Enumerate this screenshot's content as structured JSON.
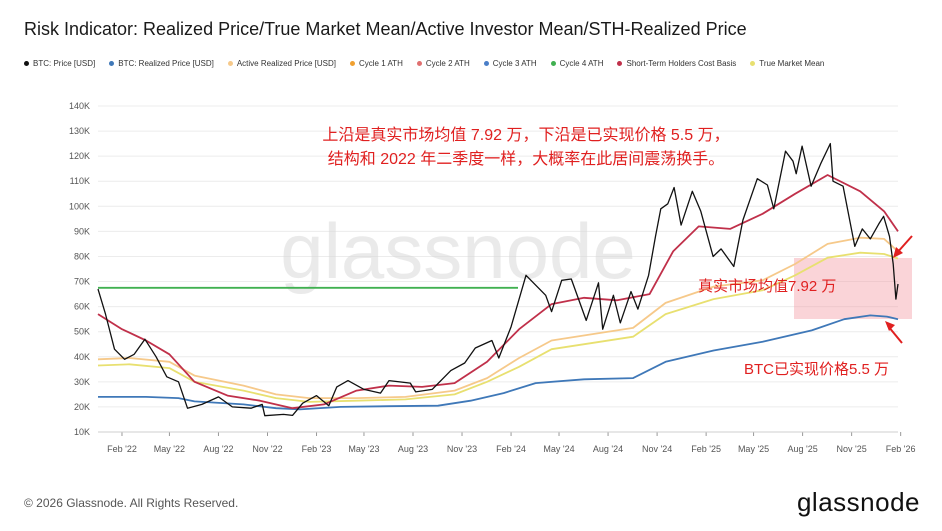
{
  "title": "Risk Indicator: Realized Price/True Market Mean/Active Investor Mean/STH-Realized Price",
  "legend": [
    {
      "label": "BTC: Price [USD]",
      "color": "#111111"
    },
    {
      "label": "BTC: Realized Price [USD]",
      "color": "#3f78b8"
    },
    {
      "label": "Active Realized Price [USD]",
      "color": "#f6c98a"
    },
    {
      "label": "Cycle 1 ATH",
      "color": "#f0a030"
    },
    {
      "label": "Cycle 2 ATH",
      "color": "#e07070"
    },
    {
      "label": "Cycle 3 ATH",
      "color": "#4a7ec8"
    },
    {
      "label": "Cycle 4 ATH",
      "color": "#40b050"
    },
    {
      "label": "Short-Term Holders Cost Basis",
      "color": "#c0304a"
    },
    {
      "label": "True Market Mean",
      "color": "#e8e070"
    }
  ],
  "annotations": {
    "main_line1": "上沿是真实市场均值 7.92 万，下沿是已实现价格 5.5 万，",
    "main_line2": "结构和 2022 年二季度一样，大概率在此居间震荡换手。",
    "tmm_label": "真实市场均值7.92 万",
    "rp_label": "BTC已实现价格5.5 万"
  },
  "watermark": "glassnode",
  "footer": "© 2026 Glassnode. All Rights Reserved.",
  "logo": "glassnode",
  "chart_data": {
    "type": "line",
    "x_ticks": [
      "Feb '22",
      "May '22",
      "Aug '22",
      "Nov '22",
      "Feb '23",
      "May '23",
      "Aug '23",
      "Nov '23",
      "Feb '24",
      "May '24",
      "Aug '24",
      "Nov '24",
      "Feb '25",
      "May '25",
      "Aug '25",
      "Nov '25",
      "Feb '26"
    ],
    "x_tick_labels": [
      "Feb '22",
      "May '22",
      "Aug '22",
      "Nov '22",
      "Feb '23",
      "May '23",
      "Aug '23",
      "Nov '23",
      "Feb '24",
      "May '24",
      "Aug '24",
      "Nov '24",
      "Feb '25",
      "May '25",
      "Aug '25",
      "Nov '25",
      "Feb '26"
    ],
    "x_range": [
      "2022-01-01",
      "2026-02-10"
    ],
    "y_ticks": [
      10000,
      20000,
      30000,
      40000,
      50000,
      60000,
      70000,
      80000,
      90000,
      100000,
      110000,
      120000,
      130000,
      140000
    ],
    "y_tick_labels": [
      "10K",
      "20K",
      "30K",
      "40K",
      "50K",
      "60K",
      "70K",
      "80K",
      "90K",
      "100K",
      "110K",
      "120K",
      "130K",
      "140K"
    ],
    "ylim": [
      10000,
      140000
    ],
    "grid": true,
    "series": [
      {
        "name": "BTC: Price [USD]",
        "color": "#111111",
        "points": [
          [
            "2022-01-01",
            67000
          ],
          [
            "2022-01-15",
            57000
          ],
          [
            "2022-02-01",
            43000
          ],
          [
            "2022-02-20",
            39000
          ],
          [
            "2022-03-10",
            41000
          ],
          [
            "2022-03-30",
            47000
          ],
          [
            "2022-04-20",
            40000
          ],
          [
            "2022-05-10",
            32000
          ],
          [
            "2022-06-01",
            30000
          ],
          [
            "2022-06-18",
            19500
          ],
          [
            "2022-07-15",
            21000
          ],
          [
            "2022-08-15",
            24000
          ],
          [
            "2022-09-10",
            20000
          ],
          [
            "2022-10-15",
            19500
          ],
          [
            "2022-11-05",
            21000
          ],
          [
            "2022-11-10",
            16500
          ],
          [
            "2022-12-15",
            17000
          ],
          [
            "2023-01-01",
            16600
          ],
          [
            "2023-01-20",
            21500
          ],
          [
            "2023-02-15",
            24500
          ],
          [
            "2023-03-10",
            20500
          ],
          [
            "2023-03-25",
            28000
          ],
          [
            "2023-04-15",
            30500
          ],
          [
            "2023-05-15",
            27000
          ],
          [
            "2023-06-15",
            25500
          ],
          [
            "2023-07-01",
            30500
          ],
          [
            "2023-08-10",
            29500
          ],
          [
            "2023-08-20",
            26000
          ],
          [
            "2023-09-20",
            27000
          ],
          [
            "2023-10-25",
            34500
          ],
          [
            "2023-11-20",
            37500
          ],
          [
            "2023-12-10",
            43500
          ],
          [
            "2024-01-10",
            46500
          ],
          [
            "2024-01-23",
            39500
          ],
          [
            "2024-02-15",
            52000
          ],
          [
            "2024-03-14",
            72500
          ],
          [
            "2024-04-20",
            64500
          ],
          [
            "2024-05-01",
            58000
          ],
          [
            "2024-05-20",
            70500
          ],
          [
            "2024-06-07",
            71000
          ],
          [
            "2024-07-05",
            54500
          ],
          [
            "2024-07-28",
            69500
          ],
          [
            "2024-08-05",
            51000
          ],
          [
            "2024-08-25",
            64500
          ],
          [
            "2024-09-07",
            53500
          ],
          [
            "2024-09-27",
            66000
          ],
          [
            "2024-10-10",
            59000
          ],
          [
            "2024-10-30",
            72500
          ],
          [
            "2024-11-12",
            88000
          ],
          [
            "2024-11-22",
            99000
          ],
          [
            "2024-12-05",
            101000
          ],
          [
            "2024-12-17",
            107500
          ],
          [
            "2024-12-30",
            92500
          ],
          [
            "2025-01-20",
            106000
          ],
          [
            "2025-02-05",
            98000
          ],
          [
            "2025-02-28",
            80000
          ],
          [
            "2025-03-15",
            83000
          ],
          [
            "2025-04-08",
            76000
          ],
          [
            "2025-04-25",
            94500
          ],
          [
            "2025-05-22",
            111000
          ],
          [
            "2025-06-10",
            108500
          ],
          [
            "2025-06-22",
            99000
          ],
          [
            "2025-07-14",
            122000
          ],
          [
            "2025-07-28",
            118000
          ],
          [
            "2025-08-03",
            113000
          ],
          [
            "2025-08-14",
            124000
          ],
          [
            "2025-08-31",
            108000
          ],
          [
            "2025-09-18",
            117000
          ],
          [
            "2025-10-06",
            125000
          ],
          [
            "2025-10-11",
            110000
          ],
          [
            "2025-10-30",
            108000
          ],
          [
            "2025-11-21",
            84000
          ],
          [
            "2025-12-05",
            91000
          ],
          [
            "2025-12-20",
            87000
          ],
          [
            "2026-01-05",
            93000
          ],
          [
            "2026-01-14",
            96000
          ],
          [
            "2026-01-25",
            88000
          ],
          [
            "2026-02-01",
            77000
          ],
          [
            "2026-02-06",
            63000
          ],
          [
            "2026-02-10",
            69000
          ]
        ]
      },
      {
        "name": "BTC: Realized Price [USD]",
        "color": "#3f78b8",
        "points": [
          [
            "2022-01-01",
            24000
          ],
          [
            "2022-04-01",
            24000
          ],
          [
            "2022-06-01",
            23500
          ],
          [
            "2022-07-01",
            22200
          ],
          [
            "2022-10-01",
            21000
          ],
          [
            "2022-12-01",
            19500
          ],
          [
            "2023-01-15",
            19000
          ],
          [
            "2023-04-01",
            20000
          ],
          [
            "2023-07-01",
            20300
          ],
          [
            "2023-10-01",
            20500
          ],
          [
            "2023-12-01",
            22500
          ],
          [
            "2024-02-01",
            25500
          ],
          [
            "2024-04-01",
            29500
          ],
          [
            "2024-07-01",
            31000
          ],
          [
            "2024-10-01",
            31500
          ],
          [
            "2024-12-01",
            38000
          ],
          [
            "2025-03-01",
            42500
          ],
          [
            "2025-06-01",
            46000
          ],
          [
            "2025-09-01",
            50500
          ],
          [
            "2025-11-01",
            55000
          ],
          [
            "2025-12-20",
            56500
          ],
          [
            "2026-01-20",
            56000
          ],
          [
            "2026-02-10",
            55000
          ]
        ]
      },
      {
        "name": "Active Realized Price [USD]",
        "color": "#f6c98a",
        "points": [
          [
            "2022-01-01",
            39000
          ],
          [
            "2022-03-01",
            39500
          ],
          [
            "2022-05-15",
            38000
          ],
          [
            "2022-07-01",
            32500
          ],
          [
            "2022-10-01",
            28500
          ],
          [
            "2022-12-01",
            25000
          ],
          [
            "2023-02-01",
            23500
          ],
          [
            "2023-05-01",
            23500
          ],
          [
            "2023-08-01",
            24000
          ],
          [
            "2023-11-01",
            26500
          ],
          [
            "2024-01-01",
            31500
          ],
          [
            "2024-03-01",
            39500
          ],
          [
            "2024-05-01",
            46500
          ],
          [
            "2024-08-01",
            49500
          ],
          [
            "2024-10-01",
            51500
          ],
          [
            "2024-12-01",
            61500
          ],
          [
            "2025-03-01",
            68000
          ],
          [
            "2025-06-01",
            70500
          ],
          [
            "2025-08-01",
            77000
          ],
          [
            "2025-10-01",
            85000
          ],
          [
            "2025-12-01",
            87500
          ],
          [
            "2026-01-15",
            87000
          ],
          [
            "2026-02-10",
            82000
          ]
        ]
      },
      {
        "name": "Cycle 4 ATH",
        "color": "#40b050",
        "points": [
          [
            "2022-01-01",
            67500
          ],
          [
            "2024-02-28",
            67500
          ]
        ]
      },
      {
        "name": "Short-Term Holders Cost Basis",
        "color": "#c0304a",
        "points": [
          [
            "2022-01-01",
            57000
          ],
          [
            "2022-02-15",
            51000
          ],
          [
            "2022-04-01",
            46500
          ],
          [
            "2022-05-15",
            41000
          ],
          [
            "2022-07-01",
            30000
          ],
          [
            "2022-09-01",
            24500
          ],
          [
            "2022-11-01",
            22500
          ],
          [
            "2023-01-01",
            19500
          ],
          [
            "2023-03-01",
            21000
          ],
          [
            "2023-05-01",
            26500
          ],
          [
            "2023-07-01",
            28500
          ],
          [
            "2023-09-01",
            28000
          ],
          [
            "2023-11-01",
            29500
          ],
          [
            "2024-01-01",
            38000
          ],
          [
            "2024-03-01",
            51000
          ],
          [
            "2024-05-01",
            61000
          ],
          [
            "2024-07-01",
            63500
          ],
          [
            "2024-09-01",
            62500
          ],
          [
            "2024-11-01",
            65000
          ],
          [
            "2024-12-15",
            82000
          ],
          [
            "2025-02-01",
            92000
          ],
          [
            "2025-04-01",
            91000
          ],
          [
            "2025-06-01",
            97000
          ],
          [
            "2025-08-01",
            105000
          ],
          [
            "2025-10-01",
            112500
          ],
          [
            "2025-12-01",
            106000
          ],
          [
            "2026-01-15",
            98000
          ],
          [
            "2026-02-10",
            90000
          ]
        ]
      },
      {
        "name": "True Market Mean",
        "color": "#e8e070",
        "points": [
          [
            "2022-01-01",
            36500
          ],
          [
            "2022-03-01",
            37000
          ],
          [
            "2022-05-15",
            35500
          ],
          [
            "2022-07-01",
            30000
          ],
          [
            "2022-10-01",
            26500
          ],
          [
            "2022-12-01",
            23500
          ],
          [
            "2023-02-01",
            22000
          ],
          [
            "2023-05-01",
            22500
          ],
          [
            "2023-08-01",
            23000
          ],
          [
            "2023-11-01",
            25000
          ],
          [
            "2024-01-01",
            30000
          ],
          [
            "2024-03-01",
            36000
          ],
          [
            "2024-05-01",
            43000
          ],
          [
            "2024-08-01",
            46000
          ],
          [
            "2024-10-01",
            48000
          ],
          [
            "2024-12-01",
            57000
          ],
          [
            "2025-03-01",
            63000
          ],
          [
            "2025-06-01",
            66500
          ],
          [
            "2025-08-01",
            72500
          ],
          [
            "2025-10-01",
            79500
          ],
          [
            "2025-12-01",
            81500
          ],
          [
            "2026-01-15",
            81000
          ],
          [
            "2026-02-10",
            79200
          ]
        ]
      }
    ]
  }
}
